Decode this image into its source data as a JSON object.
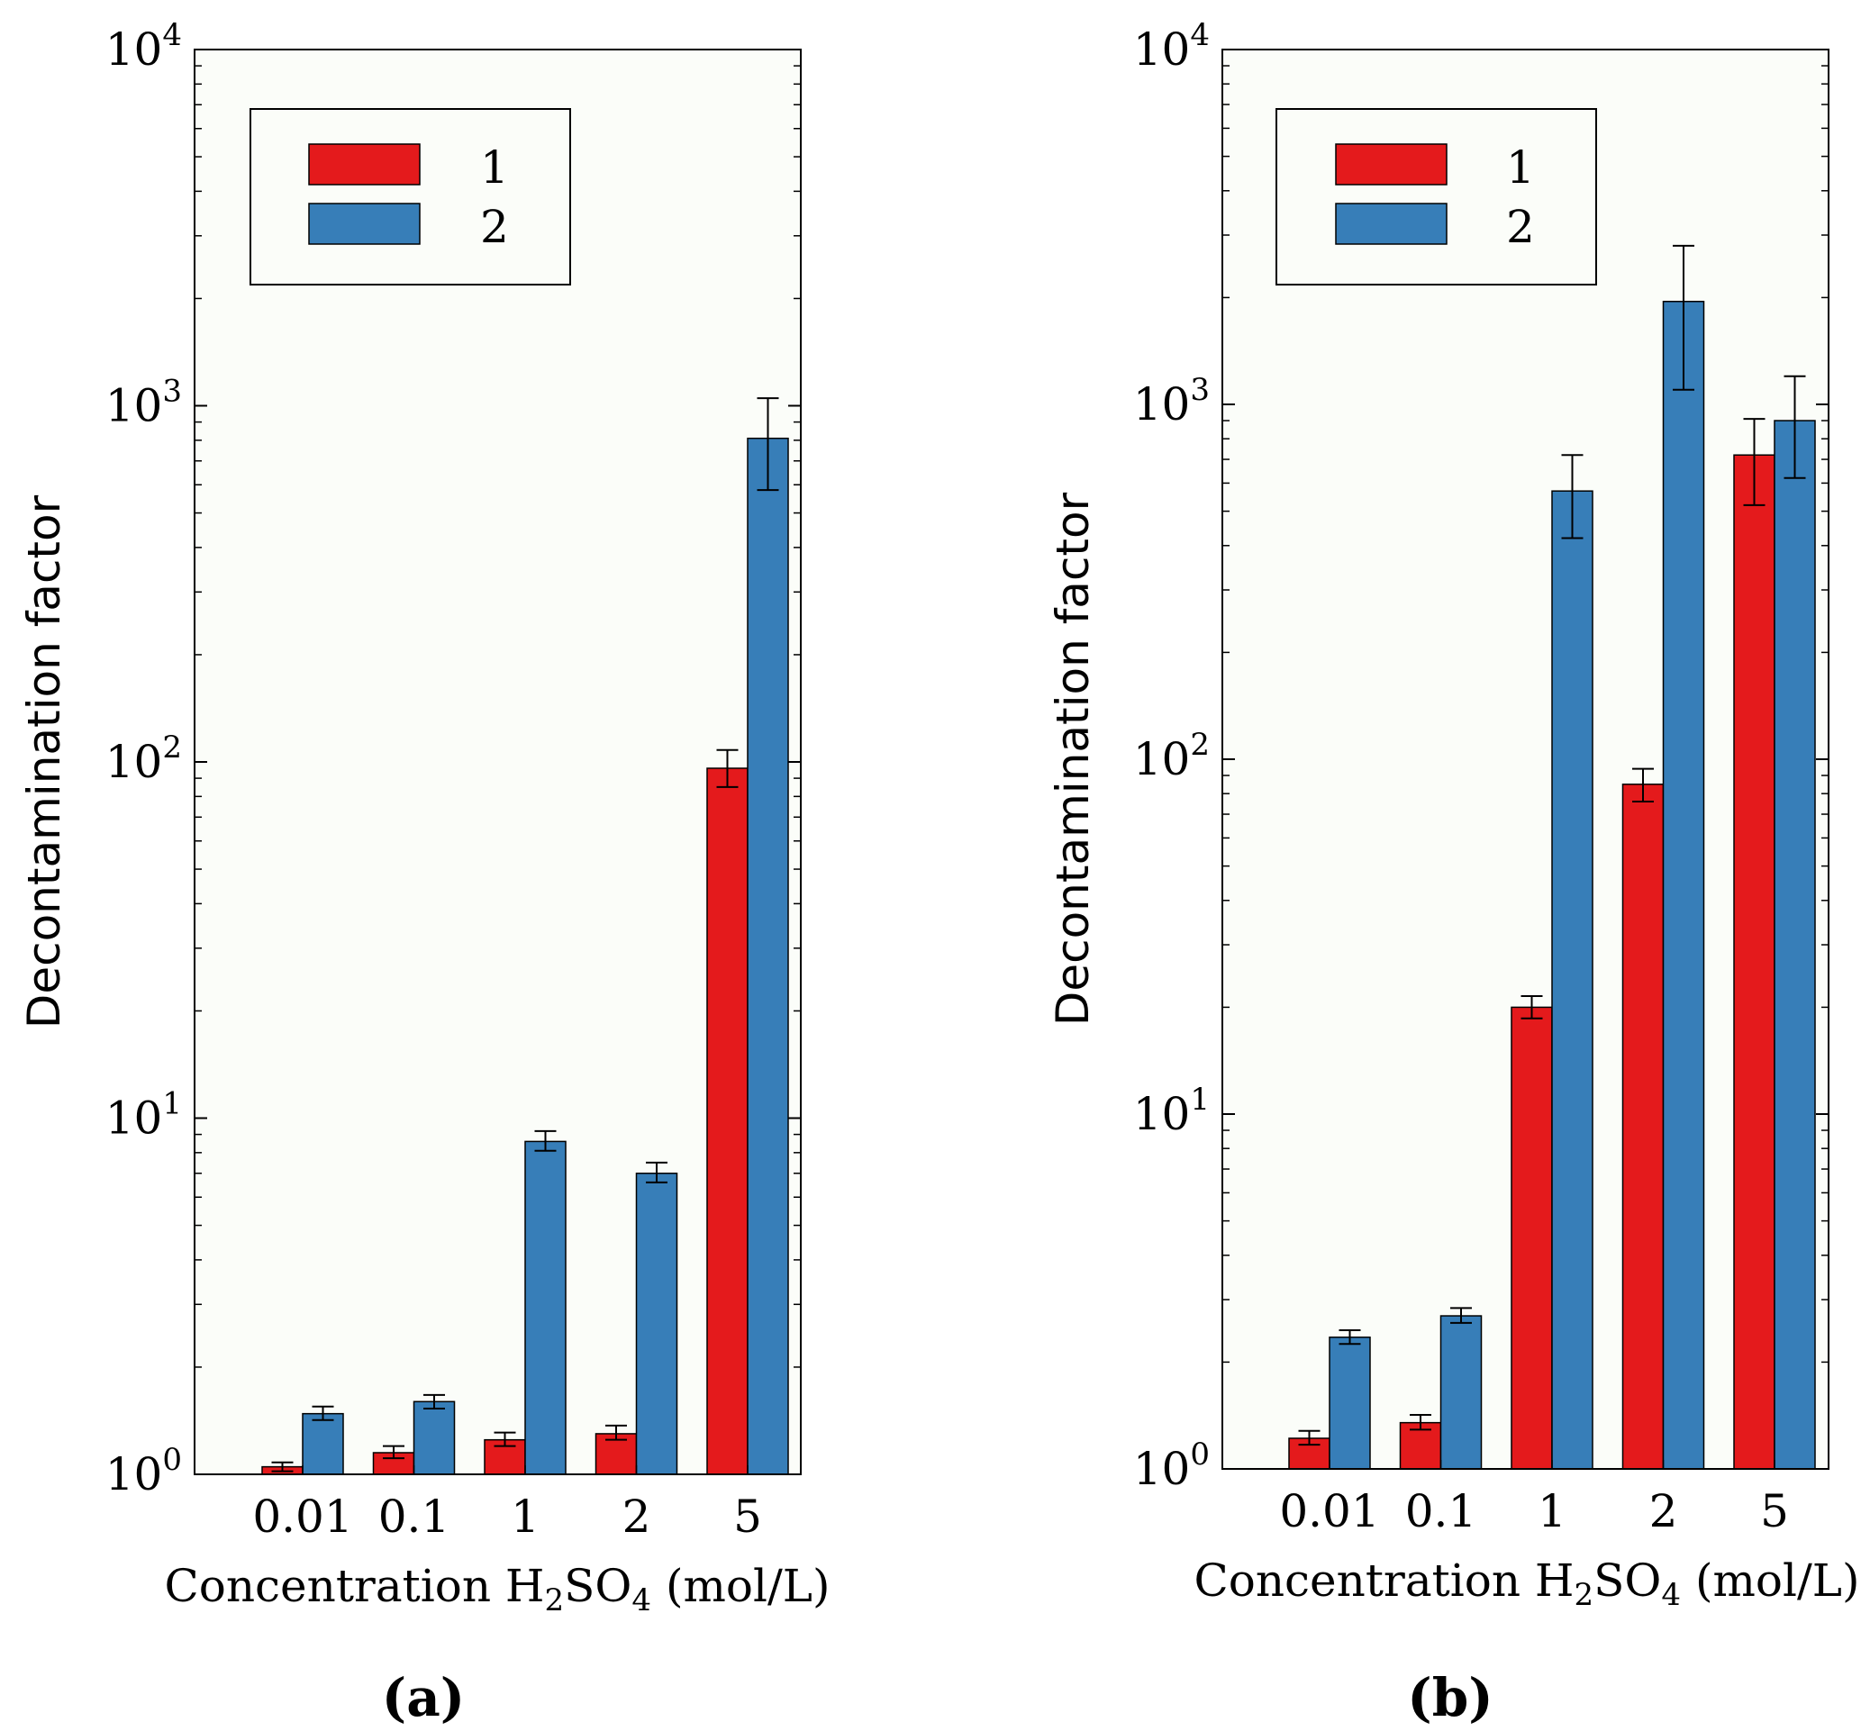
{
  "colors": {
    "series1": "#e41a1c",
    "series2": "#377eb8",
    "axes_bg": "#fbfdf9"
  },
  "chart_data": [
    {
      "type": "bar",
      "panel_label": "a",
      "title": "",
      "xlabel": "Concentration H",
      "xlabel_sub1": "2",
      "xlabel_mid": "SO",
      "xlabel_sub2": "4",
      "xlabel_end": " (mol/L)",
      "ylabel": "Decontamination factor",
      "yscale": "log",
      "ylim": [
        1,
        10000
      ],
      "yticks": [
        {
          "value": 1,
          "base": "10",
          "exp": "0"
        },
        {
          "value": 10,
          "base": "10",
          "exp": "1"
        },
        {
          "value": 100,
          "base": "10",
          "exp": "2"
        },
        {
          "value": 1000,
          "base": "10",
          "exp": "3"
        },
        {
          "value": 10000,
          "base": "10",
          "exp": "4"
        }
      ],
      "categories": [
        "0.01",
        "0.1",
        "1",
        "2",
        "5"
      ],
      "legend_position": "top-left",
      "series": [
        {
          "name": "1",
          "values": [
            1.05,
            1.15,
            1.25,
            1.3,
            96
          ],
          "err_low": [
            1.02,
            1.11,
            1.2,
            1.25,
            85
          ],
          "err_high": [
            1.08,
            1.2,
            1.31,
            1.37,
            108
          ]
        },
        {
          "name": "2",
          "values": [
            1.48,
            1.6,
            8.6,
            7.0,
            810
          ],
          "err_low": [
            1.42,
            1.53,
            8.1,
            6.6,
            580
          ],
          "err_high": [
            1.55,
            1.67,
            9.2,
            7.5,
            1050
          ]
        }
      ]
    },
    {
      "type": "bar",
      "panel_label": "b",
      "title": "",
      "xlabel": "Concentration H",
      "xlabel_sub1": "2",
      "xlabel_mid": "SO",
      "xlabel_sub2": "4",
      "xlabel_end": " (mol/L)",
      "ylabel": "Decontamination factor",
      "yscale": "log",
      "ylim": [
        1,
        10000
      ],
      "yticks": [
        {
          "value": 1,
          "base": "10",
          "exp": "0"
        },
        {
          "value": 10,
          "base": "10",
          "exp": "1"
        },
        {
          "value": 100,
          "base": "10",
          "exp": "2"
        },
        {
          "value": 1000,
          "base": "10",
          "exp": "3"
        },
        {
          "value": 10000,
          "base": "10",
          "exp": "4"
        }
      ],
      "categories": [
        "0.01",
        "0.1",
        "1",
        "2",
        "5"
      ],
      "legend_position": "top-left",
      "series": [
        {
          "name": "1",
          "values": [
            1.22,
            1.35,
            20,
            85,
            720
          ],
          "err_low": [
            1.17,
            1.29,
            18.6,
            76,
            520
          ],
          "err_high": [
            1.28,
            1.42,
            21.5,
            94,
            910
          ]
        },
        {
          "name": "2",
          "values": [
            2.35,
            2.7,
            570,
            1950,
            900
          ],
          "err_low": [
            2.25,
            2.58,
            420,
            1100,
            620
          ],
          "err_high": [
            2.46,
            2.84,
            720,
            2800,
            1200
          ]
        }
      ]
    }
  ]
}
